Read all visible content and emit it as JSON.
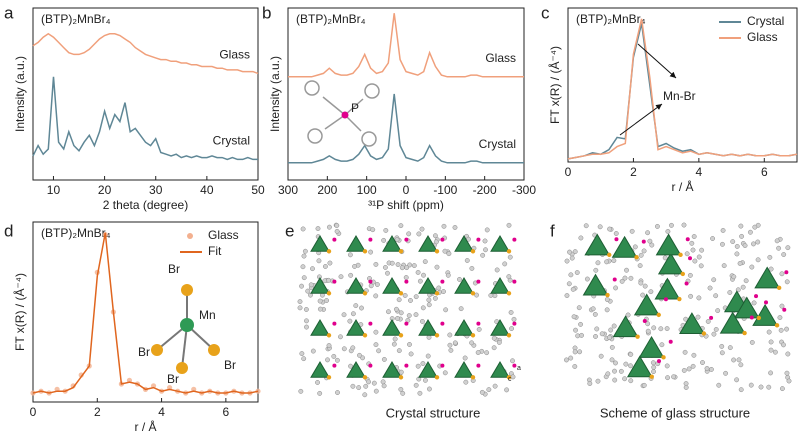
{
  "chart_data": [
    {
      "type": "line",
      "letter": "a",
      "title": "(BTP)₂MnBr₄",
      "xlabel": "2 theta (degree)",
      "ylabel": "Intensity (a.u.)",
      "xlim": [
        6,
        50
      ],
      "xticks": [
        10,
        20,
        30,
        40,
        50
      ],
      "ylim": [
        0,
        1
      ],
      "legend": "inline",
      "x": [
        6,
        7,
        8,
        9,
        10,
        11,
        12,
        13,
        14,
        15,
        16,
        17,
        18,
        19,
        20,
        21,
        22,
        23,
        24,
        25,
        26,
        27,
        28,
        29,
        30,
        31,
        32,
        33,
        34,
        35,
        36,
        37,
        38,
        39,
        40,
        41,
        42,
        43,
        44,
        45,
        46,
        47,
        48,
        49,
        50
      ],
      "series": [
        {
          "name": "Glass",
          "color": "#f0a07c",
          "values": [
            0.78,
            0.8,
            0.83,
            0.85,
            0.83,
            0.8,
            0.77,
            0.74,
            0.73,
            0.73,
            0.74,
            0.76,
            0.79,
            0.82,
            0.84,
            0.85,
            0.85,
            0.84,
            0.82,
            0.8,
            0.77,
            0.75,
            0.73,
            0.72,
            0.71,
            0.7,
            0.7,
            0.69,
            0.69,
            0.68,
            0.68,
            0.67,
            0.67,
            0.66,
            0.66,
            0.66,
            0.65,
            0.65,
            0.64,
            0.64,
            0.64,
            0.63,
            0.63,
            0.63,
            0.62
          ]
        },
        {
          "name": "Crystal",
          "color": "#5f8796",
          "values": [
            0.14,
            0.2,
            0.15,
            0.18,
            0.6,
            0.22,
            0.18,
            0.28,
            0.2,
            0.17,
            0.22,
            0.26,
            0.2,
            0.28,
            0.4,
            0.3,
            0.38,
            0.34,
            0.45,
            0.28,
            0.3,
            0.26,
            0.22,
            0.2,
            0.24,
            0.16,
            0.15,
            0.14,
            0.15,
            0.13,
            0.14,
            0.13,
            0.14,
            0.13,
            0.13,
            0.14,
            0.13,
            0.13,
            0.12,
            0.13,
            0.12,
            0.12,
            0.13,
            0.12,
            0.12
          ]
        }
      ]
    },
    {
      "type": "line",
      "letter": "b",
      "title": "(BTP)₂MnBr₄",
      "xlabel": "³¹P shift (ppm)",
      "ylabel": "Intensity (a.u.)",
      "xlim": [
        300,
        -300
      ],
      "xticks": [
        300,
        200,
        100,
        0,
        -100,
        -200,
        -300
      ],
      "ylim": [
        0,
        1
      ],
      "legend": "inline",
      "annotations": [
        "P"
      ],
      "x": [
        300,
        285,
        270,
        255,
        240,
        225,
        210,
        195,
        180,
        165,
        150,
        135,
        120,
        105,
        90,
        75,
        60,
        45,
        30,
        15,
        0,
        -15,
        -30,
        -45,
        -60,
        -75,
        -90,
        -105,
        -120,
        -135,
        -150,
        -165,
        -180,
        -195,
        -210,
        -225,
        -240,
        -255,
        -270,
        -285,
        -300
      ],
      "series": [
        {
          "name": "Glass",
          "color": "#f0a07c",
          "values": [
            0.6,
            0.6,
            0.6,
            0.6,
            0.6,
            0.61,
            0.62,
            0.65,
            0.62,
            0.61,
            0.61,
            0.62,
            0.66,
            0.73,
            0.65,
            0.62,
            0.63,
            0.68,
            0.97,
            0.7,
            0.63,
            0.62,
            0.61,
            0.63,
            0.74,
            0.66,
            0.61,
            0.6,
            0.6,
            0.6,
            0.6,
            0.61,
            0.61,
            0.6,
            0.6,
            0.6,
            0.6,
            0.6,
            0.6,
            0.6,
            0.6
          ]
        },
        {
          "name": "Crystal",
          "color": "#5f8796",
          "values": [
            0.1,
            0.1,
            0.1,
            0.1,
            0.1,
            0.11,
            0.12,
            0.14,
            0.12,
            0.11,
            0.11,
            0.12,
            0.15,
            0.2,
            0.14,
            0.12,
            0.13,
            0.18,
            0.5,
            0.2,
            0.13,
            0.12,
            0.11,
            0.13,
            0.2,
            0.14,
            0.11,
            0.1,
            0.1,
            0.1,
            0.1,
            0.11,
            0.11,
            0.1,
            0.1,
            0.1,
            0.1,
            0.1,
            0.1,
            0.1,
            0.1
          ]
        }
      ]
    },
    {
      "type": "line",
      "letter": "c",
      "title": "(BTP)₂MnBr₄",
      "xlabel": "r / Å",
      "ylabel": "FT x(R) / (Å⁻⁴)",
      "xlim": [
        0,
        7
      ],
      "xticks": [
        0,
        2,
        4,
        6
      ],
      "ylim": [
        0,
        1
      ],
      "legend": "upper right",
      "annotations": [
        "Mn-Br"
      ],
      "x": [
        0,
        0.25,
        0.5,
        0.75,
        1,
        1.25,
        1.5,
        1.75,
        2,
        2.25,
        2.5,
        2.75,
        3,
        3.25,
        3.5,
        3.75,
        4,
        4.25,
        4.5,
        4.75,
        5,
        5.25,
        5.5,
        5.75,
        6,
        6.25,
        6.5,
        6.75,
        7
      ],
      "series": [
        {
          "name": "Crystal",
          "color": "#5f8796",
          "values": [
            0.02,
            0.03,
            0.04,
            0.06,
            0.05,
            0.08,
            0.16,
            0.15,
            0.68,
            0.9,
            0.5,
            0.1,
            0.12,
            0.09,
            0.07,
            0.08,
            0.05,
            0.06,
            0.05,
            0.04,
            0.05,
            0.04,
            0.05,
            0.04,
            0.04,
            0.05,
            0.04,
            0.04,
            0.05
          ]
        },
        {
          "name": "Glass",
          "color": "#f0a07c",
          "values": [
            0.02,
            0.03,
            0.04,
            0.05,
            0.05,
            0.06,
            0.1,
            0.12,
            0.7,
            0.93,
            0.55,
            0.08,
            0.1,
            0.08,
            0.06,
            0.07,
            0.05,
            0.06,
            0.05,
            0.04,
            0.05,
            0.04,
            0.05,
            0.04,
            0.04,
            0.05,
            0.04,
            0.04,
            0.05
          ]
        }
      ]
    },
    {
      "type": "line",
      "letter": "d",
      "title": "(BTP)₂MnBr₄",
      "xlabel": "r / Å",
      "ylabel": "FT x(R) / (Å⁻⁴)",
      "xlim": [
        0,
        7
      ],
      "xticks": [
        0,
        2,
        4,
        6
      ],
      "ylim": [
        0,
        1
      ],
      "legend": "upper right",
      "annotations": [
        "Br",
        "Mn",
        "Br",
        "Br",
        "Br"
      ],
      "x": [
        0,
        0.25,
        0.5,
        0.75,
        1,
        1.25,
        1.5,
        1.75,
        2,
        2.25,
        2.5,
        2.75,
        3,
        3.25,
        3.5,
        3.75,
        4,
        4.25,
        4.5,
        4.75,
        5,
        5.25,
        5.5,
        5.75,
        6,
        6.25,
        6.5,
        6.75,
        7
      ],
      "series": [
        {
          "name": "Glass",
          "color": "#f3b08f",
          "mode": "markers",
          "values": [
            0.05,
            0.06,
            0.05,
            0.07,
            0.06,
            0.09,
            0.15,
            0.2,
            0.72,
            0.93,
            0.5,
            0.1,
            0.12,
            0.1,
            0.07,
            0.09,
            0.06,
            0.08,
            0.06,
            0.05,
            0.07,
            0.05,
            0.06,
            0.05,
            0.05,
            0.06,
            0.05,
            0.05,
            0.06
          ]
        },
        {
          "name": "Fit",
          "color": "#e0661f",
          "mode": "line",
          "values": [
            0.05,
            0.06,
            0.05,
            0.06,
            0.06,
            0.08,
            0.14,
            0.2,
            0.7,
            0.94,
            0.5,
            0.1,
            0.11,
            0.1,
            0.07,
            0.08,
            0.06,
            0.07,
            0.06,
            0.05,
            0.06,
            0.05,
            0.06,
            0.05,
            0.05,
            0.06,
            0.05,
            0.05,
            0.06
          ]
        }
      ]
    }
  ],
  "images": [
    {
      "letter": "e",
      "caption": "Crystal structure",
      "axis_labels": [
        "a",
        "c"
      ]
    },
    {
      "letter": "f",
      "caption": "Scheme of glass structure"
    }
  ]
}
